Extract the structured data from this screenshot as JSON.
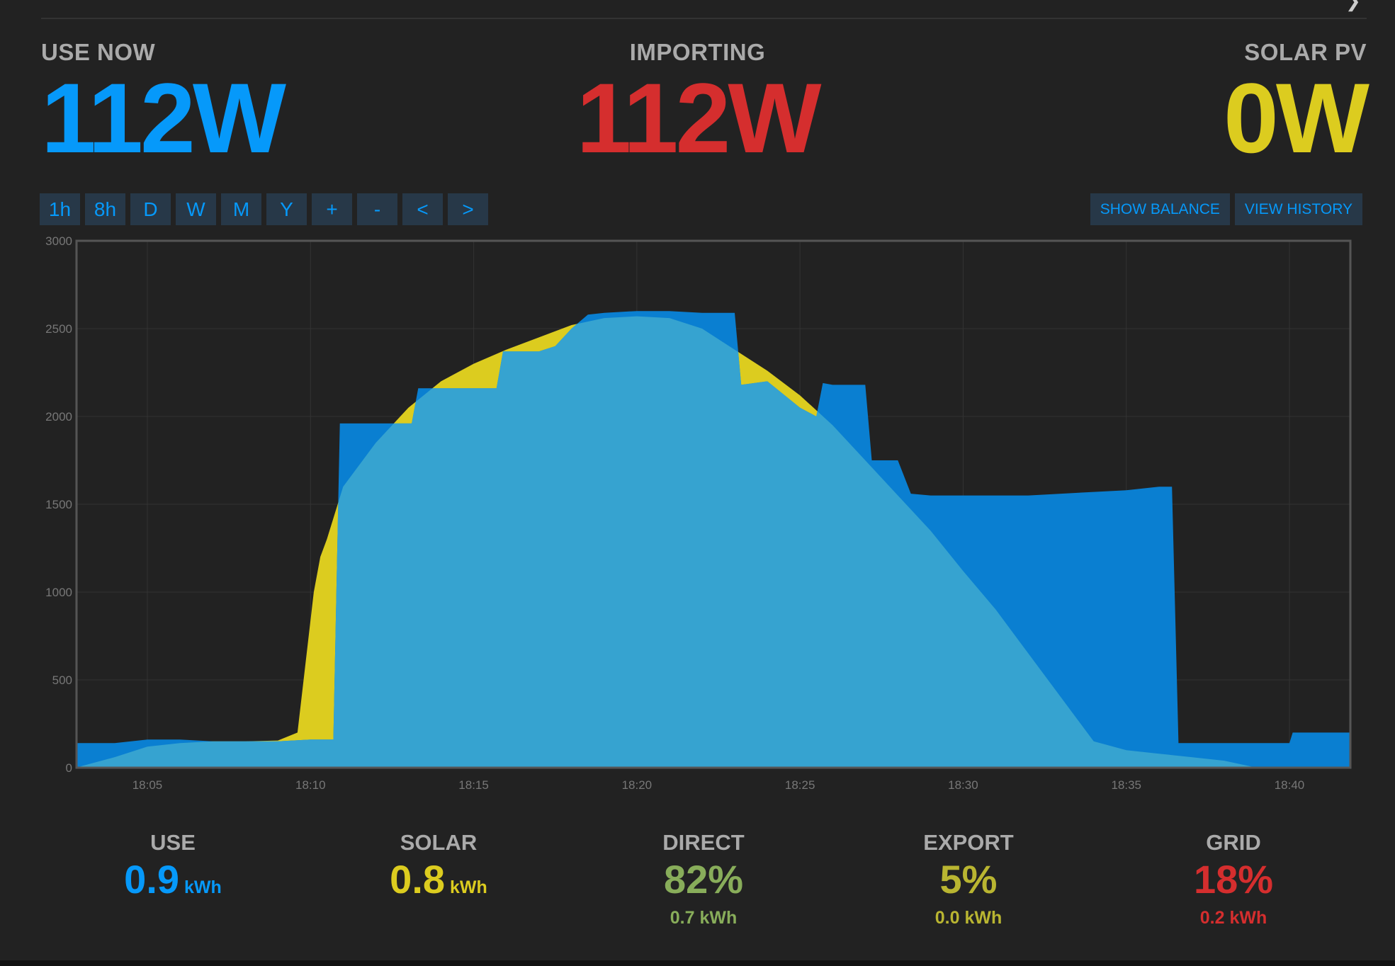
{
  "stats": {
    "use": {
      "label": "USE NOW",
      "value": "112W"
    },
    "importing": {
      "label": "IMPORTING",
      "value": "112W"
    },
    "solar": {
      "label": "SOLAR PV",
      "value": "0W"
    }
  },
  "buttons": {
    "ranges": [
      "1h",
      "8h",
      "D",
      "W",
      "M",
      "Y",
      "+",
      "-",
      "<",
      ">"
    ],
    "show_balance": "SHOW BALANCE",
    "view_history": "VIEW HISTORY"
  },
  "colors": {
    "use": "#0699fa",
    "import": "#d52e2e",
    "solar": "#dccc1f",
    "direct": "#88ad5a",
    "export": "#b9b531",
    "use_area": "#0a7fd1",
    "overlap_area": "#36a3d0"
  },
  "chart_data": {
    "type": "area",
    "x_ticks": [
      "18:05",
      "18:10",
      "18:15",
      "18:20",
      "18:25",
      "18:30",
      "18:35",
      "18:40"
    ],
    "y_ticks": [
      0,
      500,
      1000,
      1500,
      2000,
      2500,
      3000
    ],
    "xlim": [
      18.05,
      18.7
    ],
    "ylim": [
      0,
      3000
    ],
    "grid": true,
    "series": [
      {
        "key": "solar",
        "color": "#dccc1f",
        "points": [
          [
            0,
            0
          ],
          [
            3,
            10
          ],
          [
            4,
            60
          ],
          [
            5,
            120
          ],
          [
            6,
            140
          ],
          [
            7,
            150
          ],
          [
            8,
            150
          ],
          [
            9,
            155
          ],
          [
            9.6,
            200
          ],
          [
            10.1,
            1000
          ],
          [
            10.3,
            1200
          ],
          [
            10.5,
            1300
          ],
          [
            11,
            1600
          ],
          [
            12,
            1850
          ],
          [
            13,
            2050
          ],
          [
            14,
            2200
          ],
          [
            15,
            2300
          ],
          [
            16,
            2380
          ],
          [
            17,
            2450
          ],
          [
            18,
            2520
          ],
          [
            19,
            2560
          ],
          [
            20,
            2570
          ],
          [
            21,
            2560
          ],
          [
            22,
            2500
          ],
          [
            23,
            2380
          ],
          [
            24,
            2260
          ],
          [
            25,
            2120
          ],
          [
            26,
            1950
          ],
          [
            27,
            1750
          ],
          [
            28,
            1550
          ],
          [
            29,
            1350
          ],
          [
            30,
            1120
          ],
          [
            31,
            900
          ],
          [
            32,
            650
          ],
          [
            33,
            400
          ],
          [
            34,
            150
          ],
          [
            35,
            100
          ],
          [
            36,
            80
          ],
          [
            37,
            60
          ],
          [
            38,
            40
          ],
          [
            39,
            0
          ],
          [
            40,
            0
          ],
          [
            41,
            0
          ],
          [
            42,
            0
          ]
        ]
      },
      {
        "key": "use",
        "color": "#0a7fd1",
        "points": [
          [
            0,
            140
          ],
          [
            4,
            140
          ],
          [
            5,
            160
          ],
          [
            6,
            160
          ],
          [
            7,
            150
          ],
          [
            8,
            150
          ],
          [
            9,
            150
          ],
          [
            10,
            160
          ],
          [
            10.7,
            160
          ],
          [
            10.9,
            1960
          ],
          [
            12,
            1960
          ],
          [
            13.1,
            1960
          ],
          [
            13.3,
            2160
          ],
          [
            14,
            2160
          ],
          [
            15.7,
            2160
          ],
          [
            15.9,
            2370
          ],
          [
            16,
            2370
          ],
          [
            17,
            2370
          ],
          [
            17.5,
            2400
          ],
          [
            18,
            2500
          ],
          [
            18.5,
            2580
          ],
          [
            19,
            2590
          ],
          [
            20,
            2600
          ],
          [
            21,
            2600
          ],
          [
            22,
            2590
          ],
          [
            23,
            2590
          ],
          [
            23.2,
            2180
          ],
          [
            24,
            2200
          ],
          [
            25,
            2050
          ],
          [
            25.5,
            2000
          ],
          [
            25.7,
            2190
          ],
          [
            26,
            2180
          ],
          [
            27,
            2180
          ],
          [
            27.2,
            1750
          ],
          [
            28,
            1750
          ],
          [
            28.4,
            1560
          ],
          [
            29,
            1550
          ],
          [
            30,
            1550
          ],
          [
            31,
            1550
          ],
          [
            32,
            1550
          ],
          [
            33,
            1560
          ],
          [
            34,
            1570
          ],
          [
            35,
            1580
          ],
          [
            36,
            1600
          ],
          [
            36.4,
            1600
          ],
          [
            36.6,
            140
          ],
          [
            37,
            140
          ],
          [
            38,
            140
          ],
          [
            40,
            140
          ],
          [
            40.1,
            200
          ],
          [
            42,
            200
          ]
        ]
      }
    ]
  },
  "summary": [
    {
      "label": "USE",
      "value": "0.9",
      "unit": "kWh",
      "sub": "",
      "color": "#0699fa"
    },
    {
      "label": "SOLAR",
      "value": "0.8",
      "unit": "kWh",
      "sub": "",
      "color": "#dccc1f"
    },
    {
      "label": "DIRECT",
      "value": "82%",
      "unit": "",
      "sub": "0.7 kWh",
      "color": "#88ad5a"
    },
    {
      "label": "EXPORT",
      "value": "5%",
      "unit": "",
      "sub": "0.0 kWh",
      "color": "#b9b531"
    },
    {
      "label": "GRID",
      "value": "18%",
      "unit": "",
      "sub": "0.2 kWh",
      "color": "#d52e2e"
    }
  ]
}
